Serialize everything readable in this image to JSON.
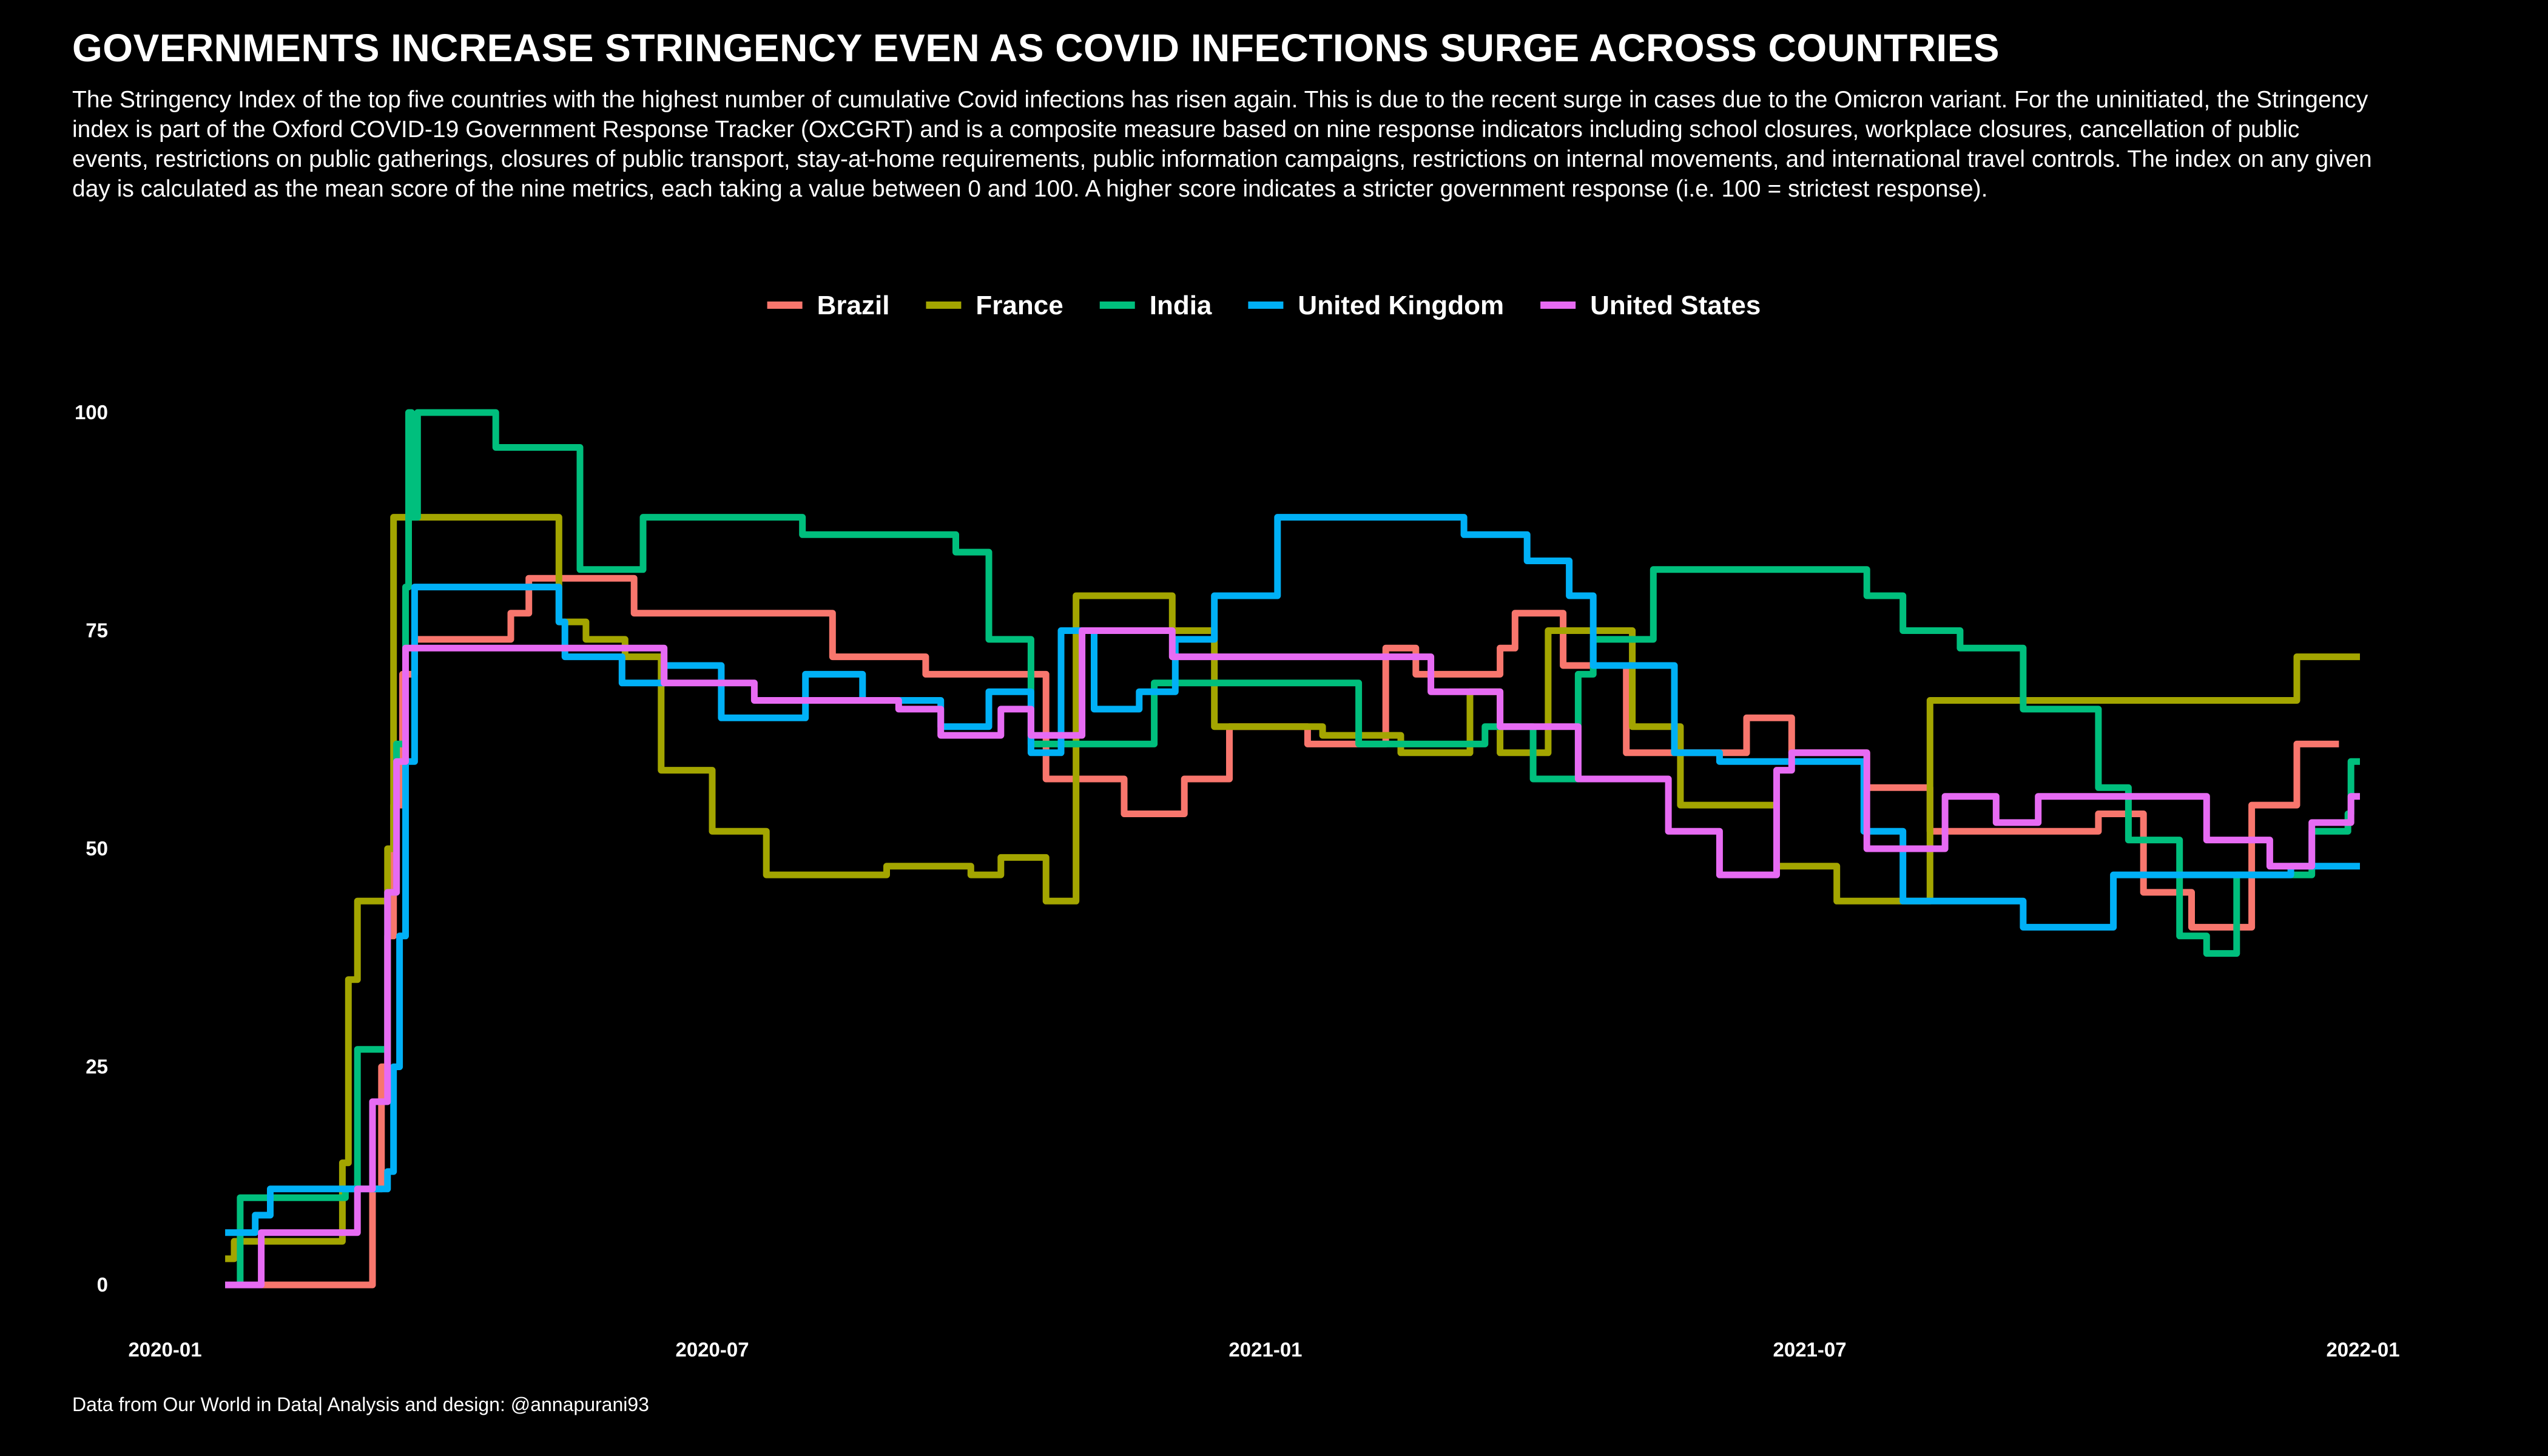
{
  "title": "GOVERNMENTS INCREASE STRINGENCY EVEN AS COVID INFECTIONS SURGE ACROSS COUNTRIES",
  "subtitle": "The Stringency Index of the top five countries with the highest number of cumulative Covid infections has risen again. This is due to the recent surge in cases due to the Omicron variant. For the uninitiated, the Stringency index is part of the Oxford COVID-19 Government Response Tracker (OxCGRT) and is a composite measure based on nine response indicators including school closures, workplace closures, cancellation of public events, restrictions on public gatherings, closures of public transport, stay-at-home requirements, public information campaigns, restrictions on internal movements, and international travel controls. The index on any given day is calculated as the mean score of the nine metrics, each taking a value between 0 and 100. A higher score indicates a stricter government response (i.e. 100 = strictest response).",
  "caption": "Data from Our World in Data| Analysis and design: @annapurani93",
  "colors": {
    "background": "#000000",
    "text": "#ffffff"
  },
  "chart_data": {
    "type": "line",
    "step": true,
    "title": "",
    "xlabel": "",
    "ylabel": "",
    "grid": false,
    "legend_position": "top",
    "xlim": [
      "2020-01-01",
      "2022-01-01"
    ],
    "ylim": [
      0,
      100
    ],
    "x_ticks": [
      "2020-01",
      "2020-07",
      "2021-01",
      "2021-07",
      "2022-01"
    ],
    "y_ticks": [
      0,
      25,
      50,
      75,
      100
    ],
    "series": [
      {
        "name": "Brazil",
        "color": "#F8766D",
        "points": [
          [
            "2020-01-21",
            0
          ],
          [
            "2020-03-10",
            11
          ],
          [
            "2020-03-13",
            25
          ],
          [
            "2020-03-15",
            40
          ],
          [
            "2020-03-17",
            55
          ],
          [
            "2020-03-20",
            70
          ],
          [
            "2020-03-24",
            74
          ],
          [
            "2020-04-25",
            77
          ],
          [
            "2020-05-01",
            81
          ],
          [
            "2020-06-05",
            77
          ],
          [
            "2020-08-10",
            72
          ],
          [
            "2020-09-10",
            70
          ],
          [
            "2020-10-20",
            58
          ],
          [
            "2020-11-15",
            54
          ],
          [
            "2020-12-05",
            58
          ],
          [
            "2020-12-20",
            64
          ],
          [
            "2021-01-15",
            62
          ],
          [
            "2021-02-10",
            73
          ],
          [
            "2021-02-20",
            70
          ],
          [
            "2021-03-20",
            73
          ],
          [
            "2021-03-25",
            77
          ],
          [
            "2021-04-10",
            71
          ],
          [
            "2021-05-01",
            61
          ],
          [
            "2021-06-10",
            65
          ],
          [
            "2021-06-25",
            61
          ],
          [
            "2021-07-20",
            57
          ],
          [
            "2021-08-10",
            52
          ],
          [
            "2021-10-05",
            54
          ],
          [
            "2021-10-20",
            45
          ],
          [
            "2021-11-05",
            41
          ],
          [
            "2021-11-25",
            55
          ],
          [
            "2021-12-10",
            62
          ],
          [
            "2021-12-24",
            62
          ]
        ]
      },
      {
        "name": "France",
        "color": "#A3A500",
        "points": [
          [
            "2020-01-21",
            3
          ],
          [
            "2020-01-24",
            5
          ],
          [
            "2020-02-29",
            14
          ],
          [
            "2020-03-02",
            35
          ],
          [
            "2020-03-05",
            44
          ],
          [
            "2020-03-15",
            50
          ],
          [
            "2020-03-17",
            88
          ],
          [
            "2020-05-11",
            76
          ],
          [
            "2020-05-20",
            74
          ],
          [
            "2020-06-02",
            72
          ],
          [
            "2020-06-14",
            59
          ],
          [
            "2020-07-01",
            52
          ],
          [
            "2020-07-19",
            47
          ],
          [
            "2020-08-28",
            48
          ],
          [
            "2020-09-25",
            47
          ],
          [
            "2020-10-05",
            49
          ],
          [
            "2020-10-20",
            44
          ],
          [
            "2020-10-30",
            79
          ],
          [
            "2020-12-01",
            75
          ],
          [
            "2020-12-15",
            64
          ],
          [
            "2021-01-20",
            63
          ],
          [
            "2021-02-15",
            61
          ],
          [
            "2021-03-10",
            68
          ],
          [
            "2021-03-20",
            61
          ],
          [
            "2021-04-05",
            75
          ],
          [
            "2021-05-03",
            64
          ],
          [
            "2021-05-19",
            55
          ],
          [
            "2021-06-20",
            48
          ],
          [
            "2021-07-10",
            44
          ],
          [
            "2021-08-10",
            67
          ],
          [
            "2021-12-10",
            72
          ],
          [
            "2021-12-31",
            72
          ]
        ]
      },
      {
        "name": "India",
        "color": "#00BF7D",
        "points": [
          [
            "2020-01-21",
            0
          ],
          [
            "2020-01-26",
            10
          ],
          [
            "2020-03-01",
            11
          ],
          [
            "2020-03-05",
            27
          ],
          [
            "2020-03-15",
            45
          ],
          [
            "2020-03-18",
            62
          ],
          [
            "2020-03-21",
            80
          ],
          [
            "2020-03-22",
            100
          ],
          [
            "2020-03-23",
            88
          ],
          [
            "2020-03-25",
            100
          ],
          [
            "2020-04-20",
            96
          ],
          [
            "2020-05-01",
            96
          ],
          [
            "2020-05-18",
            82
          ],
          [
            "2020-06-01",
            82
          ],
          [
            "2020-06-08",
            88
          ],
          [
            "2020-07-31",
            86
          ],
          [
            "2020-09-20",
            84
          ],
          [
            "2020-10-01",
            74
          ],
          [
            "2020-10-15",
            62
          ],
          [
            "2020-11-25",
            69
          ],
          [
            "2021-02-01",
            62
          ],
          [
            "2021-03-15",
            64
          ],
          [
            "2021-03-31",
            58
          ],
          [
            "2021-04-15",
            70
          ],
          [
            "2021-04-20",
            74
          ],
          [
            "2021-05-10",
            82
          ],
          [
            "2021-07-20",
            79
          ],
          [
            "2021-08-01",
            75
          ],
          [
            "2021-08-20",
            73
          ],
          [
            "2021-09-10",
            66
          ],
          [
            "2021-10-05",
            57
          ],
          [
            "2021-10-15",
            51
          ],
          [
            "2021-11-01",
            40
          ],
          [
            "2021-11-10",
            38
          ],
          [
            "2021-11-20",
            47
          ],
          [
            "2021-12-15",
            52
          ],
          [
            "2021-12-27",
            54
          ],
          [
            "2021-12-28",
            60
          ],
          [
            "2021-12-31",
            60
          ]
        ]
      },
      {
        "name": "United Kingdom",
        "color": "#00B0F6",
        "points": [
          [
            "2020-01-21",
            6
          ],
          [
            "2020-01-31",
            8
          ],
          [
            "2020-02-05",
            11
          ],
          [
            "2020-03-15",
            13
          ],
          [
            "2020-03-17",
            25
          ],
          [
            "2020-03-19",
            40
          ],
          [
            "2020-03-21",
            60
          ],
          [
            "2020-03-24",
            80
          ],
          [
            "2020-05-11",
            76
          ],
          [
            "2020-05-13",
            72
          ],
          [
            "2020-06-01",
            69
          ],
          [
            "2020-06-15",
            71
          ],
          [
            "2020-07-04",
            65
          ],
          [
            "2020-08-01",
            70
          ],
          [
            "2020-08-20",
            67
          ],
          [
            "2020-09-15",
            64
          ],
          [
            "2020-10-01",
            68
          ],
          [
            "2020-10-15",
            61
          ],
          [
            "2020-10-25",
            75
          ],
          [
            "2020-11-05",
            66
          ],
          [
            "2020-11-20",
            68
          ],
          [
            "2020-12-02",
            74
          ],
          [
            "2020-12-15",
            79
          ],
          [
            "2021-01-05",
            88
          ],
          [
            "2021-03-08",
            86
          ],
          [
            "2021-03-29",
            83
          ],
          [
            "2021-04-12",
            79
          ],
          [
            "2021-04-20",
            71
          ],
          [
            "2021-05-17",
            61
          ],
          [
            "2021-06-01",
            60
          ],
          [
            "2021-07-19",
            52
          ],
          [
            "2021-08-01",
            44
          ],
          [
            "2021-09-10",
            41
          ],
          [
            "2021-10-10",
            47
          ],
          [
            "2021-12-08",
            48
          ],
          [
            "2021-12-31",
            48
          ]
        ]
      },
      {
        "name": "United States",
        "color": "#E76BF3",
        "points": [
          [
            "2020-01-21",
            0
          ],
          [
            "2020-02-02",
            6
          ],
          [
            "2020-03-05",
            11
          ],
          [
            "2020-03-10",
            21
          ],
          [
            "2020-03-15",
            45
          ],
          [
            "2020-03-18",
            60
          ],
          [
            "2020-03-21",
            73
          ],
          [
            "2020-06-15",
            69
          ],
          [
            "2020-07-15",
            67
          ],
          [
            "2020-09-01",
            66
          ],
          [
            "2020-09-15",
            63
          ],
          [
            "2020-10-05",
            66
          ],
          [
            "2020-10-15",
            63
          ],
          [
            "2020-11-01",
            75
          ],
          [
            "2020-12-01",
            72
          ],
          [
            "2021-02-25",
            68
          ],
          [
            "2021-03-20",
            64
          ],
          [
            "2021-04-15",
            58
          ],
          [
            "2021-05-15",
            52
          ],
          [
            "2021-06-01",
            47
          ],
          [
            "2021-06-20",
            59
          ],
          [
            "2021-06-25",
            61
          ],
          [
            "2021-07-20",
            50
          ],
          [
            "2021-08-15",
            56
          ],
          [
            "2021-09-01",
            53
          ],
          [
            "2021-09-15",
            56
          ],
          [
            "2021-11-10",
            51
          ],
          [
            "2021-12-01",
            48
          ],
          [
            "2021-12-15",
            53
          ],
          [
            "2021-12-28",
            56
          ],
          [
            "2021-12-31",
            56
          ]
        ]
      }
    ]
  }
}
